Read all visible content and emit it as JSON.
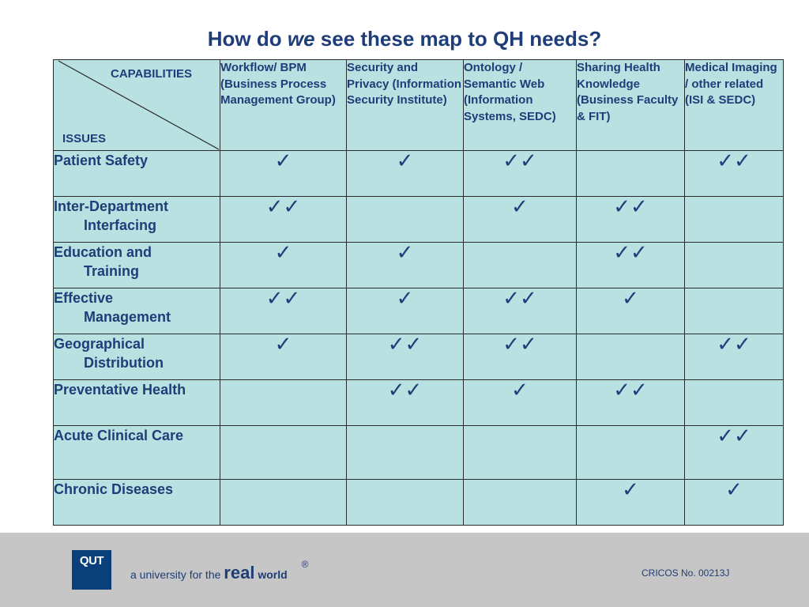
{
  "title": {
    "part1": "How do ",
    "emphasis": "we",
    "part2": " see these map to QH needs?"
  },
  "table": {
    "corner": {
      "top_label": "CAPABILITIES",
      "bottom_label": "ISSUES"
    },
    "columns": [
      "Workflow/ BPM (Business Process Management Group)",
      "Security and Privacy (Information Security Institute)",
      "Ontology / Semantic Web (Information Systems, SEDC)",
      "Sharing Health Knowledge (Business Faculty & FIT)",
      "Medical Imaging / other related (ISI & SEDC)"
    ],
    "rows": [
      {
        "line1": "Patient Safety",
        "line2": "",
        "checks": [
          "✓",
          "✓",
          "✓✓",
          "",
          "✓✓"
        ]
      },
      {
        "line1": "Inter-Department",
        "line2": "Interfacing",
        "checks": [
          "✓✓",
          "",
          "✓",
          "✓✓",
          ""
        ]
      },
      {
        "line1": "Education and",
        "line2": "Training",
        "checks": [
          "✓",
          "✓",
          "",
          "✓✓",
          ""
        ]
      },
      {
        "line1": "Effective",
        "line2": "Management",
        "checks": [
          "✓✓",
          "✓",
          "✓✓",
          "✓",
          ""
        ]
      },
      {
        "line1": "Geographical",
        "line2": "Distribution",
        "checks": [
          "✓",
          "✓✓",
          "✓✓",
          "",
          "✓✓"
        ]
      },
      {
        "line1": "Preventative Health",
        "line2": "",
        "checks": [
          "",
          "✓✓",
          "✓",
          "✓✓",
          ""
        ]
      },
      {
        "line1": "Acute Clinical Care",
        "line2": "",
        "checks": [
          "",
          "",
          "",
          "",
          "✓✓"
        ]
      },
      {
        "line1": "Chronic Diseases",
        "line2": "",
        "checks": [
          "",
          "",
          "",
          "✓",
          "✓"
        ]
      }
    ]
  },
  "footer": {
    "logo_text": "QUT",
    "tagline_prefix": "a university for the",
    "tagline_real": "real",
    "tagline_world": "world",
    "registered": "®",
    "cricos": "CRICOS No. 00213J"
  },
  "colors": {
    "title": "#1f3d78",
    "table_fill": "#b9e1e2",
    "footer_band": "#c6c6c6",
    "logo_bg": "#0a3f7a"
  }
}
